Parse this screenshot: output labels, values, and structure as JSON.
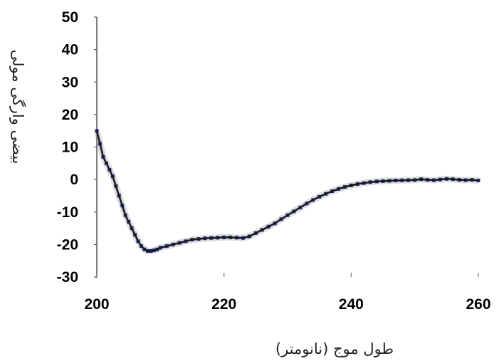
{
  "chart_data": {
    "type": "line",
    "title": "",
    "xlabel": "طول موج (نانومتر)",
    "ylabel": "بیضی وارگی مولی",
    "xlim": [
      200,
      260
    ],
    "ylim": [
      -30,
      50
    ],
    "x_ticks": [
      200,
      220,
      240,
      260
    ],
    "y_ticks": [
      50,
      40,
      30,
      20,
      10,
      0,
      -10,
      -20,
      -30
    ],
    "grid": false,
    "legend": "none",
    "series": [
      {
        "color": "#1a1a1a",
        "marker_color": "#1f2a8a",
        "x": [
          200,
          200.5,
          201,
          201.5,
          202,
          202.5,
          203,
          203.5,
          204,
          204.5,
          205,
          205.5,
          206,
          206.5,
          207,
          207.5,
          208,
          208.5,
          209,
          209.5,
          210,
          211,
          212,
          213,
          214,
          215,
          216,
          217,
          218,
          219,
          220,
          221,
          222,
          223,
          224,
          225,
          226,
          227,
          228,
          229,
          230,
          231,
          232,
          233,
          234,
          235,
          236,
          237,
          238,
          239,
          240,
          241,
          242,
          243,
          244,
          245,
          246,
          247,
          248,
          249,
          250,
          251,
          252,
          253,
          254,
          255,
          256,
          257,
          258,
          259,
          260
        ],
        "y": [
          15,
          11,
          7,
          5,
          3,
          1,
          -2,
          -5,
          -8,
          -11,
          -13,
          -15,
          -17,
          -19,
          -20.5,
          -21.5,
          -22,
          -22,
          -21.8,
          -21.5,
          -21,
          -20.5,
          -20,
          -19.5,
          -19,
          -18.5,
          -18.3,
          -18.1,
          -18,
          -17.9,
          -17.8,
          -17.8,
          -17.9,
          -18,
          -17.5,
          -16.5,
          -15.5,
          -14.5,
          -13.5,
          -12.2,
          -11,
          -9.8,
          -8.6,
          -7.4,
          -6.3,
          -5.3,
          -4.4,
          -3.6,
          -2.9,
          -2.3,
          -1.8,
          -1.4,
          -1.1,
          -0.8,
          -0.6,
          -0.5,
          -0.4,
          -0.3,
          -0.25,
          -0.2,
          -0.15,
          0.1,
          -0.1,
          -0.2,
          0,
          0.2,
          0.1,
          -0.1,
          -0.2,
          -0.1,
          -0.3
        ]
      }
    ]
  }
}
